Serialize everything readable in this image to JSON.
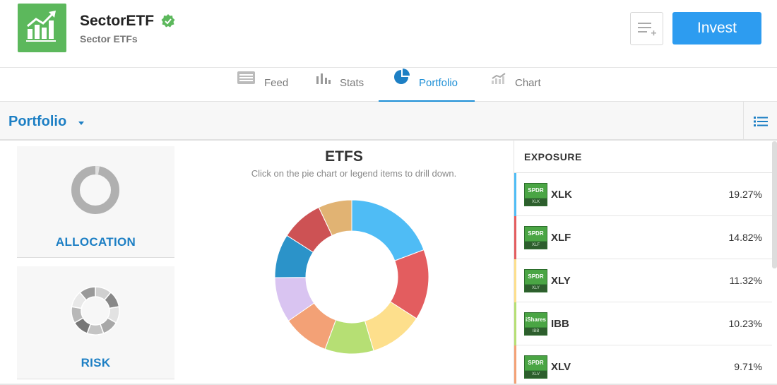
{
  "header": {
    "title": "SectorETF",
    "subtitle": "Sector ETFs",
    "invest_label": "Invest",
    "brand_color": "#5cb85c",
    "invest_color": "#2d9cf0"
  },
  "tabs": [
    {
      "label": "Feed",
      "icon": "feed-icon"
    },
    {
      "label": "Stats",
      "icon": "stats-icon"
    },
    {
      "label": "Portfolio",
      "icon": "pie-icon",
      "active": true
    },
    {
      "label": "Chart",
      "icon": "chart-icon"
    }
  ],
  "portfolio_bar": {
    "title": "Portfolio"
  },
  "cards": {
    "allocation_label": "ALLOCATION",
    "risk_label": "RISK"
  },
  "chart": {
    "title": "ETFS",
    "subtitle": "Click on the pie chart or legend items to drill down."
  },
  "chart_data": {
    "type": "pie",
    "title": "ETFS",
    "slice_colors": [
      "#4fbcf5",
      "#e35d5f",
      "#fddf8c",
      "#b6df74",
      "#f3a176",
      "#d9c4f1",
      "#2b93c9",
      "#cd5254",
      "#e1b373"
    ],
    "values": [
      19.27,
      14.82,
      11.32,
      10.23,
      9.71,
      9.5,
      9.2,
      8.9,
      7.05
    ]
  },
  "exposure": {
    "header": "EXPOSURE",
    "rows": [
      {
        "ticker": "XLK",
        "pct": "19.27%",
        "color": "#4fbcf5",
        "logo_top": "SPDR",
        "logo_bottom": "XLK"
      },
      {
        "ticker": "XLF",
        "pct": "14.82%",
        "color": "#e35d5f",
        "logo_top": "SPDR",
        "logo_bottom": "XLF"
      },
      {
        "ticker": "XLY",
        "pct": "11.32%",
        "color": "#fddf8c",
        "logo_top": "SPDR",
        "logo_bottom": "XLY"
      },
      {
        "ticker": "IBB",
        "pct": "10.23%",
        "color": "#b6df74",
        "logo_top": "iShares",
        "logo_bottom": "IBB"
      },
      {
        "ticker": "XLV",
        "pct": "9.71%",
        "color": "#f3a176",
        "logo_top": "SPDR",
        "logo_bottom": "XLV"
      }
    ]
  }
}
